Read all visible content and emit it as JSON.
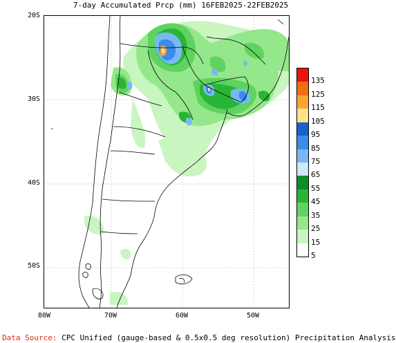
{
  "title": "7-day Accumulated Prcp (mm) 16FEB2025-22FEB2025",
  "y_axis": [
    "20S",
    "30S",
    "40S",
    "50S"
  ],
  "x_axis": [
    "80W",
    "70W",
    "60W",
    "50W"
  ],
  "legend": {
    "labels": [
      "135",
      "125",
      "115",
      "105",
      "95",
      "85",
      "75",
      "65",
      "55",
      "45",
      "35",
      "25",
      "15",
      "5"
    ],
    "colors": [
      "#e8140f",
      "#f06e10",
      "#f9a533",
      "#ffe28a",
      "#1d5fcf",
      "#3a8ce8",
      "#78b9f3",
      "#cde9fa",
      "#0e8c2a",
      "#28b536",
      "#5fd35f",
      "#95e78b",
      "#c9f5c0",
      "#ffffff"
    ]
  },
  "footer": {
    "source_label": "Data Source:",
    "source_text": "CPC Unified (gauge-based & 0.5x0.5 deg resolution) Precipitation Analysis"
  }
}
